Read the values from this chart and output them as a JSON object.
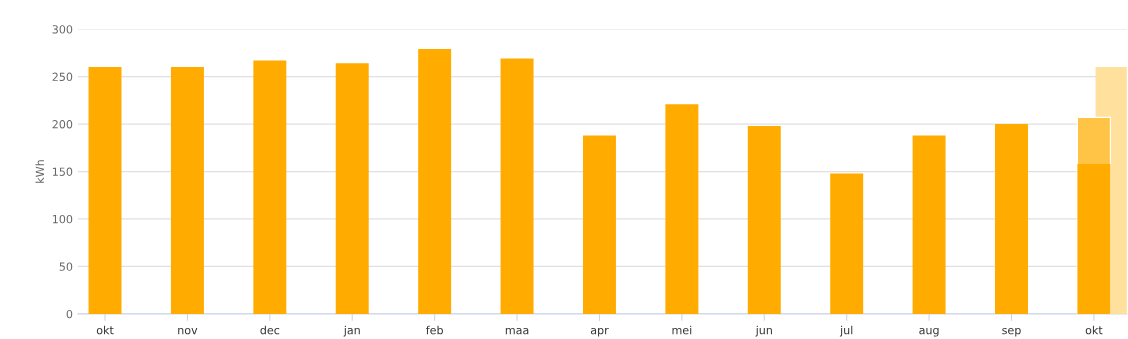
{
  "chart_data": {
    "type": "bar",
    "ylabel": "kWh",
    "categories": [
      "okt",
      "nov",
      "dec",
      "jan",
      "feb",
      "maa",
      "apr",
      "mei",
      "jun",
      "jul",
      "aug",
      "sep",
      "okt"
    ],
    "series": [
      {
        "color": "#ffab00",
        "values": [
          260,
          260,
          267,
          264,
          279,
          269,
          188,
          221,
          198,
          148,
          188,
          200,
          158
        ]
      },
      {
        "color": "#ffc445",
        "values": [
          null,
          null,
          null,
          null,
          null,
          null,
          null,
          null,
          null,
          null,
          null,
          null,
          207
        ]
      },
      {
        "color": "#ffe09c",
        "values": [
          null,
          null,
          null,
          null,
          null,
          null,
          null,
          null,
          null,
          null,
          null,
          null,
          260
        ]
      }
    ],
    "ylim": [
      0,
      300
    ],
    "yticks": [
      0,
      50,
      100,
      150,
      200,
      250,
      300
    ],
    "grid": "y"
  }
}
